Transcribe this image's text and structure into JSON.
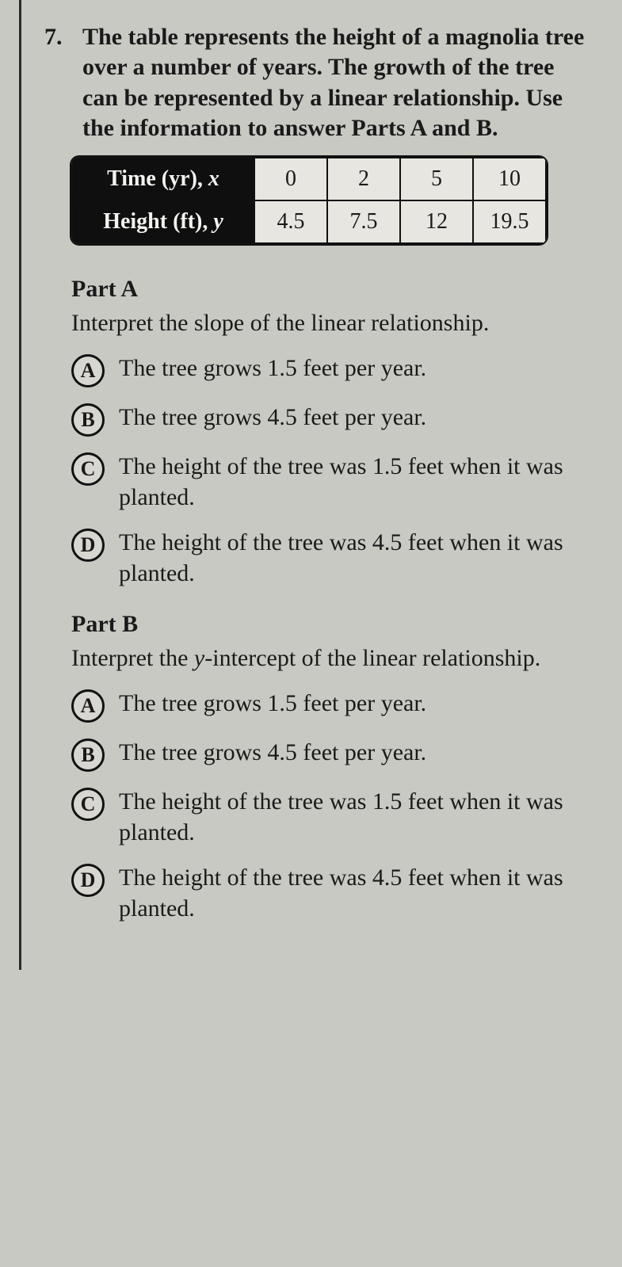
{
  "question": {
    "number": "7.",
    "text": "The table represents the height of a magnolia tree over a number of years. The growth of the tree can be represented by a linear relationship. Use the information to answer Parts A and B."
  },
  "table": {
    "row_headers": [
      {
        "label": "Time (yr), ",
        "var": "x"
      },
      {
        "label": "Height (ft), ",
        "var": "y"
      }
    ],
    "columns": [
      "0",
      "2",
      "5",
      "10"
    ],
    "rows": [
      [
        "0",
        "2",
        "5",
        "10"
      ],
      [
        "4.5",
        "7.5",
        "12",
        "19.5"
      ]
    ],
    "header_bg": "#0f0f0f",
    "header_fg": "#f3f3f0",
    "cell_bg": "#e7e6e1",
    "border_color": "#111111",
    "font_size_pt": 21
  },
  "partA": {
    "label": "Part A",
    "prompt": "Interpret the slope of the linear relationship.",
    "choices": [
      {
        "letter": "A",
        "text": "The tree grows 1.5 feet per year."
      },
      {
        "letter": "B",
        "text": "The tree grows 4.5 feet per year."
      },
      {
        "letter": "C",
        "text": "The height of the tree was 1.5 feet when it was planted."
      },
      {
        "letter": "D",
        "text": "The height of the tree was 4.5 feet when it was planted."
      }
    ]
  },
  "partB": {
    "label": "Part B",
    "prompt_pre": "Interpret the ",
    "prompt_ital": "y",
    "prompt_post": "-intercept of the linear relationship.",
    "choices": [
      {
        "letter": "A",
        "text": "The tree grows 1.5 feet per year."
      },
      {
        "letter": "B",
        "text": "The tree grows 4.5 feet per year."
      },
      {
        "letter": "C",
        "text": "The height of the tree was 1.5 feet when it was planted."
      },
      {
        "letter": "D",
        "text": "The height of the tree was 4.5 feet when it was planted."
      }
    ]
  },
  "style": {
    "page_bg": "#c9c9c4",
    "text_color": "#1a1a1a",
    "body_font_size_pt": 22
  }
}
